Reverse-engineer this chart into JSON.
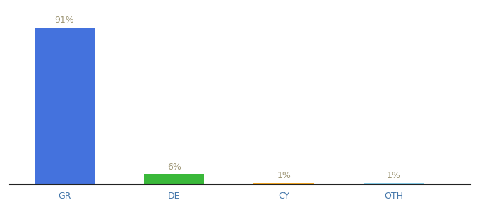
{
  "categories": [
    "GR",
    "DE",
    "CY",
    "OTH"
  ],
  "values": [
    91,
    6,
    1,
    1
  ],
  "bar_colors": [
    "#4472dd",
    "#3ab83a",
    "#f5a623",
    "#87ceeb"
  ],
  "value_labels": [
    "91%",
    "6%",
    "1%",
    "1%"
  ],
  "label_color": "#a09878",
  "ylim": [
    0,
    97
  ],
  "background_color": "#ffffff",
  "bar_width": 0.55,
  "tick_fontsize": 9,
  "value_fontsize": 9,
  "x_positions": [
    0.5,
    1.5,
    2.5,
    3.5
  ]
}
